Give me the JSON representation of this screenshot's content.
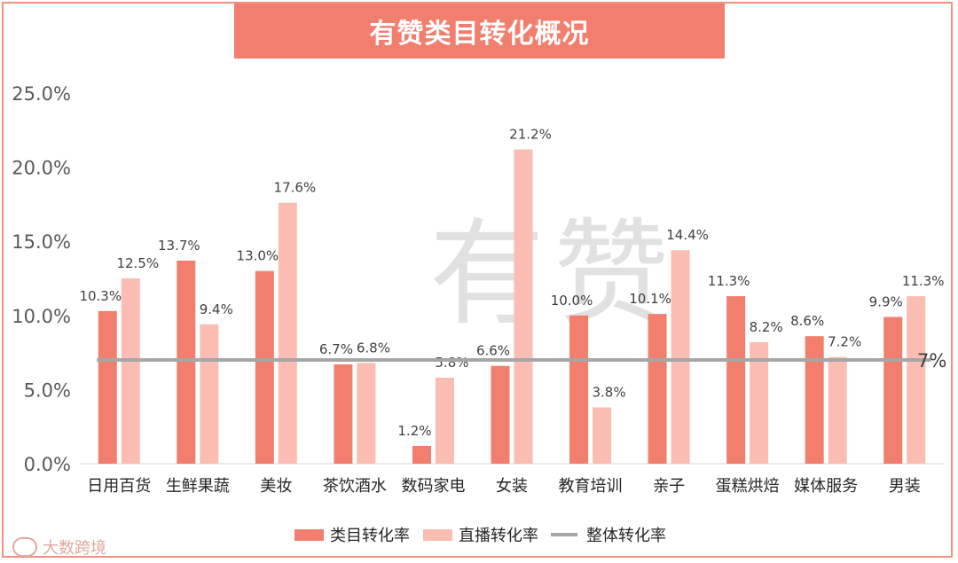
{
  "title": "有赞类目转化概况",
  "watermark": "有赞",
  "footer": {
    "brand": "大数跨境"
  },
  "colors": {
    "frame": "#f58f80",
    "title_bg": "#f27e6e",
    "category": "#f27e6e",
    "live": "#fbbdb2",
    "overall": "#a6a6a6",
    "axis_text": "#595959"
  },
  "chart_data": {
    "type": "bar",
    "title": "有赞类目转化概况",
    "categories": [
      "日用百货",
      "生鲜果蔬",
      "美妆",
      "茶饮酒水",
      "数码家电",
      "女装",
      "教育培训",
      "亲子",
      "蛋糕烘焙",
      "媒体服务",
      "男装"
    ],
    "series": [
      {
        "name": "类目转化率",
        "values": [
          10.3,
          13.7,
          13.0,
          6.7,
          1.2,
          6.6,
          10.0,
          10.1,
          11.3,
          8.6,
          9.9
        ],
        "labels": [
          "10.3%",
          "13.7%",
          "13.0%",
          "6.7%",
          "1.2%",
          "6.6%",
          "10.0%",
          "10.1%",
          "11.3%",
          "8.6%",
          "9.9%"
        ]
      },
      {
        "name": "直播转化率",
        "values": [
          12.5,
          9.4,
          17.6,
          6.8,
          5.8,
          21.2,
          3.8,
          14.4,
          8.2,
          7.2,
          11.3
        ],
        "labels": [
          "12.5%",
          "9.4%",
          "17.6%",
          "6.8%",
          "5.8%",
          "21.2%",
          "3.8%",
          "14.4%",
          "8.2%",
          "7.2%",
          "11.3%"
        ]
      }
    ],
    "overall": {
      "name": "整体转化率",
      "value": 7,
      "label": "7%"
    },
    "ylim": [
      0,
      25
    ],
    "yticks": [
      0,
      5,
      10,
      15,
      20,
      25
    ],
    "ytick_labels": [
      "0.0%",
      "5.0%",
      "10.0%",
      "15.0%",
      "20.0%",
      "25.0%"
    ],
    "xlabel": "",
    "ylabel": "",
    "grid": false,
    "legend_position": "bottom"
  }
}
